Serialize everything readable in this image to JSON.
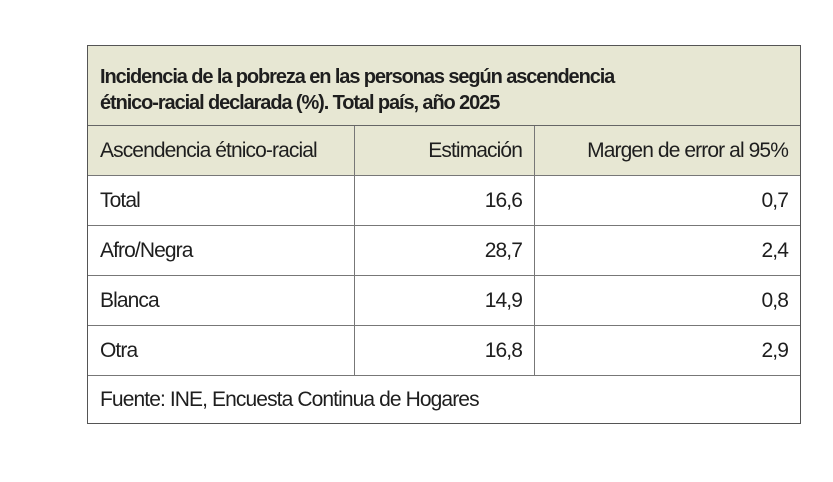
{
  "title_line1": "Incidencia de la pobreza en las personas según ascendencia",
  "title_line2": "étnico-racial declarada (%). Total país, año 2025",
  "columns": [
    "Ascendencia étnico-racial",
    "Estimación",
    "Margen de error al 95%"
  ],
  "rows": [
    [
      "Total",
      "16,6",
      "0,7"
    ],
    [
      "Afro/Negra",
      "28,7",
      "2,4"
    ],
    [
      "Blanca",
      "14,9",
      "0,8"
    ],
    [
      "Otra",
      "16,8",
      "2,9"
    ]
  ],
  "source": "Fuente: INE, Encuesta Continua de Hogares",
  "colors": {
    "header_bg": "#e7e7d3",
    "border": "#555555",
    "text": "#1e1e1e"
  }
}
